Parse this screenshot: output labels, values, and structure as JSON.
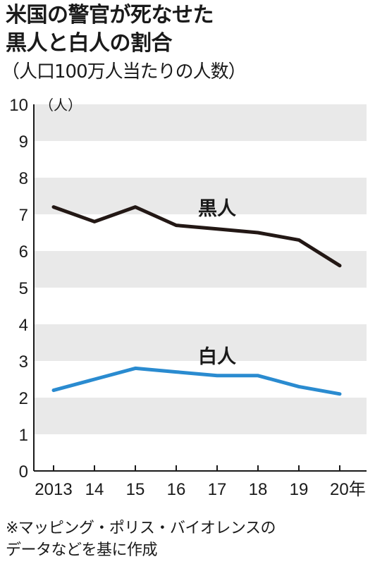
{
  "title_line1": "米国の警官が死なせた",
  "title_line2": "黒人と白人の割合",
  "subtitle": "（人口100万人当たりの人数）",
  "source_line1": "※マッピング・ポリス・バイオレンスの",
  "source_line2": "データなどを基に作成",
  "colors": {
    "black_series": "#231815",
    "white_series": "#2a8bd0",
    "band": "#e9e9e9",
    "axis": "#1a1a1a"
  },
  "chart_data": {
    "type": "line",
    "ylabel": "（人）",
    "ylim": [
      0,
      10
    ],
    "yticks": [
      "0",
      "1",
      "2",
      "3",
      "4",
      "5",
      "6",
      "7",
      "8",
      "9",
      "10"
    ],
    "categories": [
      "2013",
      "14",
      "15",
      "16",
      "17",
      "18",
      "19",
      "20年"
    ],
    "series": [
      {
        "name": "黒人",
        "values": [
          7.2,
          6.8,
          7.2,
          6.7,
          6.6,
          6.5,
          6.3,
          5.6
        ]
      },
      {
        "name": "白人",
        "values": [
          2.2,
          2.5,
          2.8,
          2.7,
          2.6,
          2.6,
          2.3,
          2.1
        ]
      }
    ],
    "grid": "alternating horizontal bands",
    "legend": "inline labels above lines"
  }
}
